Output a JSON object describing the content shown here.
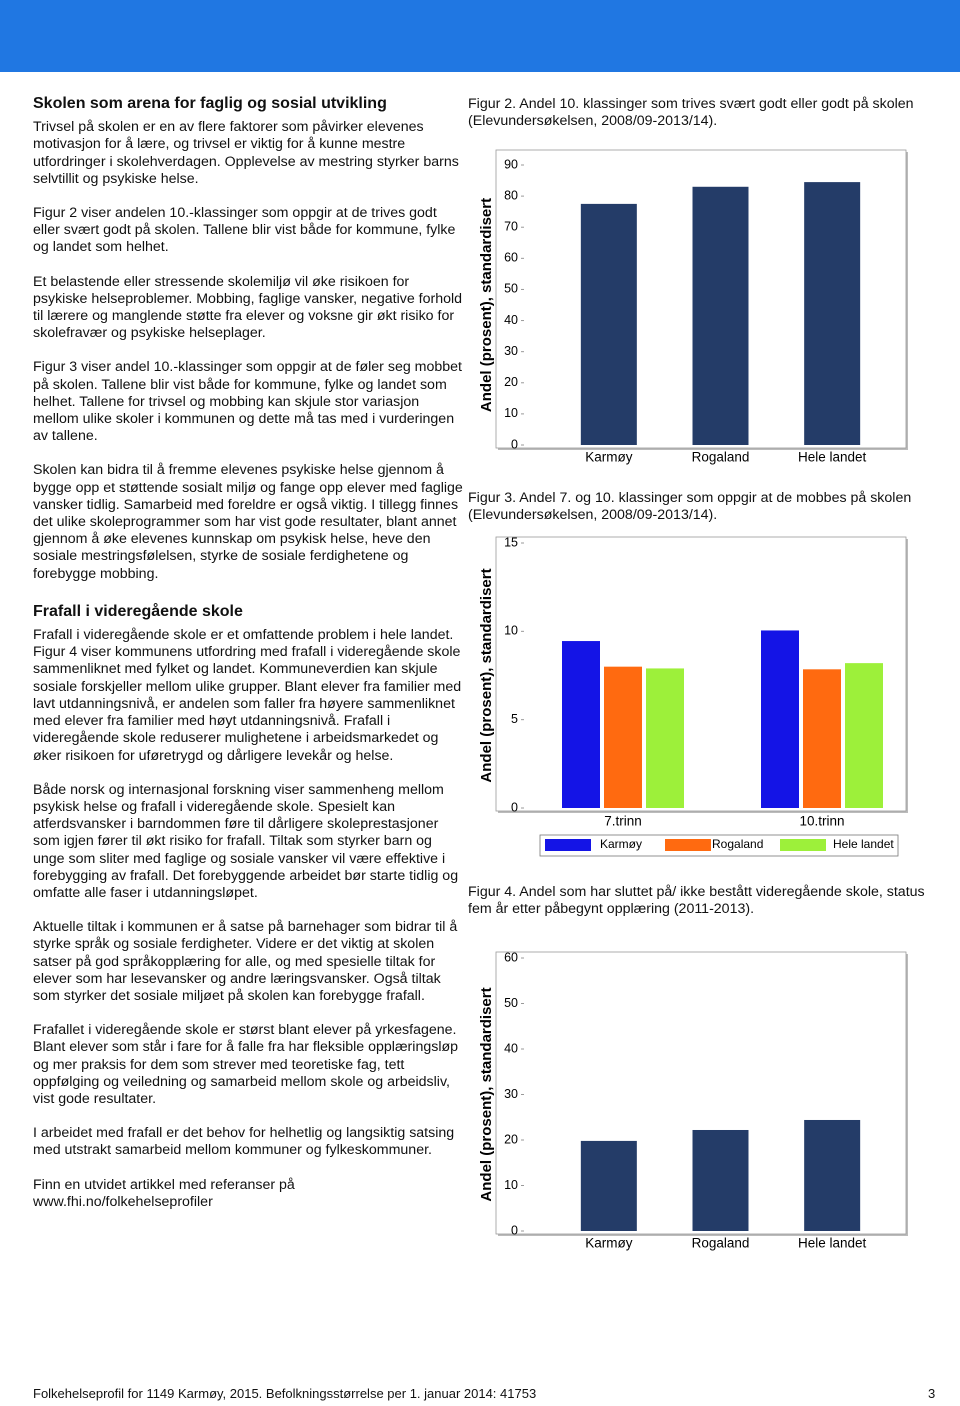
{
  "document": {
    "sections": [
      {
        "title": "Skolen som arena for faglig og sosial utvikling",
        "paragraphs": [
          "Trivsel på skolen er en av flere faktorer som påvirker elevenes motivasjon for å lære, og trivsel er viktig for å kunne mestre utfordringer i skolehverdagen. Opplevelse av mestring styrker barns selvtillit og psykiske helse.",
          "Figur 2 viser andelen 10.-klassinger som oppgir at de trives godt eller svært godt på skolen. Tallene blir vist både for kommune, fylke og landet som helhet.",
          "Et belastende eller stressende skolemiljø vil øke risikoen for psykiske helseproblemer. Mobbing, faglige vansker, negative forhold til lærere og manglende støtte fra elever og voksne gir økt risiko for skolefravær og psykiske helseplager.",
          "Figur 3 viser andel 10.-klassinger som oppgir at de føler seg mobbet på skolen. Tallene blir vist både for kommune, fylke og landet som helhet. Tallene for trivsel og mobbing kan skjule stor variasjon mellom ulike skoler i kommunen og dette må tas med i vurderingen av tallene.",
          "Skolen kan bidra til å fremme elevenes psykiske helse gjennom å bygge opp et støttende sosialt miljø og fange opp elever med faglige vansker tidlig. Samarbeid med foreldre er også viktig. I tillegg finnes det ulike skoleprogrammer som har vist gode resultater, blant annet gjennom å øke elevenes kunnskap om psykisk helse, heve den sosiale mestringsfølelsen, styrke de sosiale ferdighetene og forebygge mobbing."
        ]
      },
      {
        "title": "Frafall i videregående skole",
        "paragraphs": [
          "Frafall i videregående skole er et omfattende problem i hele landet. Figur 4 viser kommunens utfordring med frafall i videregående skole sammenliknet med fylket og landet. Kommuneverdien kan skjule sosiale forskjeller mellom ulike grupper. Blant elever fra familier med lavt utdanningsnivå, er andelen som faller fra høyere sammenliknet med elever fra familier med høyt utdanningsnivå. Frafall i videregående skole reduserer mulighetene i arbeidsmarkedet og øker risikoen for uføretrygd og dårligere levekår og helse.",
          "Både norsk og internasjonal forskning viser sammenheng mellom psykisk helse og frafall i videregående skole. Spesielt kan atferdsvansker i barndommen føre til dårligere skoleprestasjoner som igjen fører til økt risiko for frafall. Tiltak som styrker barn og unge som sliter med faglige og sosiale vansker vil være effektive i forebygging av frafall. Det forebyggende arbeidet bør starte tidlig og omfatte alle faser i utdanningsløpet.",
          "Aktuelle tiltak i kommunen er å satse på barnehager som bidrar til å styrke språk og sosiale ferdigheter. Videre er det viktig at skolen satser på god språkopplæring for alle, og med spesielle tiltak for elever som har lesevansker og andre læringsvansker. Også tiltak som styrker det sosiale miljøet på skolen kan forebygge frafall.",
          "Frafallet i videregående skole er størst blant elever på yrkesfagene. Blant elever som står i fare for å falle fra har fleksible opplæringsløp og mer praksis for dem som strever med teoretiske fag, tett oppfølging og veiledning og samarbeid mellom skole og arbeidsliv, vist gode resultater.",
          "I arbeidet med frafall er det behov for helhetlig og langsiktig satsing med utstrakt samarbeid mellom kommuner og fylkeskommuner.",
          "Finn en utvidet artikkel med referanser på www.fhi.no/folkehelseprofiler"
        ]
      }
    ],
    "footer": {
      "text": "Folkehelseprofil for 1149 Karmøy, 2015. Befolkningsstørrelse per 1. januar 2014:  41753",
      "page": "3"
    }
  },
  "chart_data": [
    {
      "type": "bar",
      "title": "Figur 2. Andel 10. klassinger som trives svært godt eller godt på skolen (Elevundersøkelsen, 2008/09-2013/14).",
      "y_label": "Andel (prosent), standardisert",
      "categories": [
        "Karmøy",
        "Rogaland",
        "Hele landet"
      ],
      "values": [
        77.5,
        83,
        84.5
      ],
      "color": "#243c68",
      "ylim": [
        0,
        90
      ],
      "yticks": [
        0,
        10,
        20,
        30,
        40,
        50,
        60,
        70,
        80,
        90
      ],
      "grid": false
    },
    {
      "type": "grouped_bar",
      "title": "Figur 3. Andel 7. og 10. klassinger som oppgir at de mobbes på skolen (Elevundersøkelsen, 2008/09-2013/14).",
      "y_label": "Andel (prosent), standardisert",
      "categories": [
        "7.trinn",
        "10.trinn"
      ],
      "series": [
        {
          "name": "Karmøy",
          "color": "#1414e6",
          "values": [
            9.45,
            10.05
          ]
        },
        {
          "name": "Rogaland",
          "color": "#ff6a10",
          "values": [
            8.0,
            7.85
          ]
        },
        {
          "name": "Hele landet",
          "color": "#9df03a",
          "values": [
            7.9,
            8.2
          ]
        }
      ],
      "ylim": [
        0,
        15
      ],
      "yticks": [
        0,
        5,
        10,
        15
      ],
      "grid": false,
      "legend": "bottom"
    },
    {
      "type": "bar",
      "title": "Figur 4. Andel som har sluttet på/ ikke bestått videregående skole, status fem år etter påbegynt opplæring (2011-2013).",
      "y_label": "Andel (prosent), standardisert",
      "categories": [
        "Karmøy",
        "Rogaland",
        "Hele landet"
      ],
      "values": [
        19.8,
        22.2,
        24.4
      ],
      "color": "#243c68",
      "ylim": [
        0,
        60
      ],
      "yticks": [
        0,
        10,
        20,
        30,
        40,
        50,
        60
      ],
      "grid": false
    }
  ]
}
